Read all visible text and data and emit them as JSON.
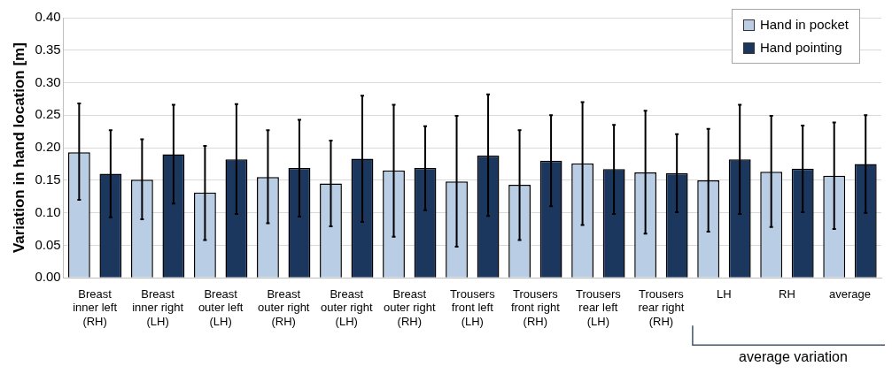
{
  "chart_data": {
    "type": "bar",
    "ylabel": "Variation in hand location [m]",
    "categories": [
      "Breast inner left (RH)",
      "Breast inner right (LH)",
      "Breast outer left (LH)",
      "Breast outer right (RH)",
      "Breast outer right (LH)",
      "Breast outer right (RH)",
      "Trousers front left (LH)",
      "Trousers front right (RH)",
      "Trousers rear left (LH)",
      "Trousers rear right (RH)",
      "LH",
      "RH",
      "average"
    ],
    "series": [
      {
        "name": "Hand in pocket",
        "color": "#b9cde5",
        "values": [
          0.193,
          0.151,
          0.131,
          0.155,
          0.145,
          0.165,
          0.148,
          0.143,
          0.176,
          0.162,
          0.15,
          0.163,
          0.157
        ],
        "errors": [
          [
            0.12,
            0.268
          ],
          [
            0.09,
            0.213
          ],
          [
            0.058,
            0.203
          ],
          [
            0.084,
            0.227
          ],
          [
            0.079,
            0.211
          ],
          [
            0.063,
            0.266
          ],
          [
            0.048,
            0.249
          ],
          [
            0.058,
            0.227
          ],
          [
            0.081,
            0.27
          ],
          [
            0.068,
            0.257
          ],
          [
            0.071,
            0.229
          ],
          [
            0.078,
            0.249
          ],
          [
            0.075,
            0.239
          ]
        ]
      },
      {
        "name": "Hand pointing",
        "color": "#1b375e",
        "values": [
          0.16,
          0.19,
          0.182,
          0.169,
          0.183,
          0.169,
          0.188,
          0.18,
          0.167,
          0.161,
          0.182,
          0.168,
          0.175
        ],
        "errors": [
          [
            0.093,
            0.227
          ],
          [
            0.114,
            0.266
          ],
          [
            0.098,
            0.267
          ],
          [
            0.094,
            0.243
          ],
          [
            0.086,
            0.28
          ],
          [
            0.104,
            0.233
          ],
          [
            0.095,
            0.282
          ],
          [
            0.11,
            0.25
          ],
          [
            0.098,
            0.235
          ],
          [
            0.101,
            0.221
          ],
          [
            0.098,
            0.266
          ],
          [
            0.101,
            0.234
          ],
          [
            0.1,
            0.25
          ]
        ]
      }
    ],
    "ylim": [
      0,
      0.4
    ],
    "yticks": [
      {
        "value": 0,
        "label": "0.00"
      },
      {
        "value": 0.05,
        "label": "0.05"
      },
      {
        "value": 0.1,
        "label": "0.10"
      },
      {
        "value": 0.15,
        "label": "0.15"
      },
      {
        "value": 0.2,
        "label": "0.20"
      },
      {
        "value": 0.25,
        "label": "0.25"
      },
      {
        "value": 0.3,
        "label": "0.30"
      },
      {
        "value": 0.35,
        "label": "0.35"
      },
      {
        "value": 0.4,
        "label": "0.40"
      }
    ],
    "grid": "y",
    "legend": "top right",
    "annotations": [
      "average variation"
    ]
  }
}
